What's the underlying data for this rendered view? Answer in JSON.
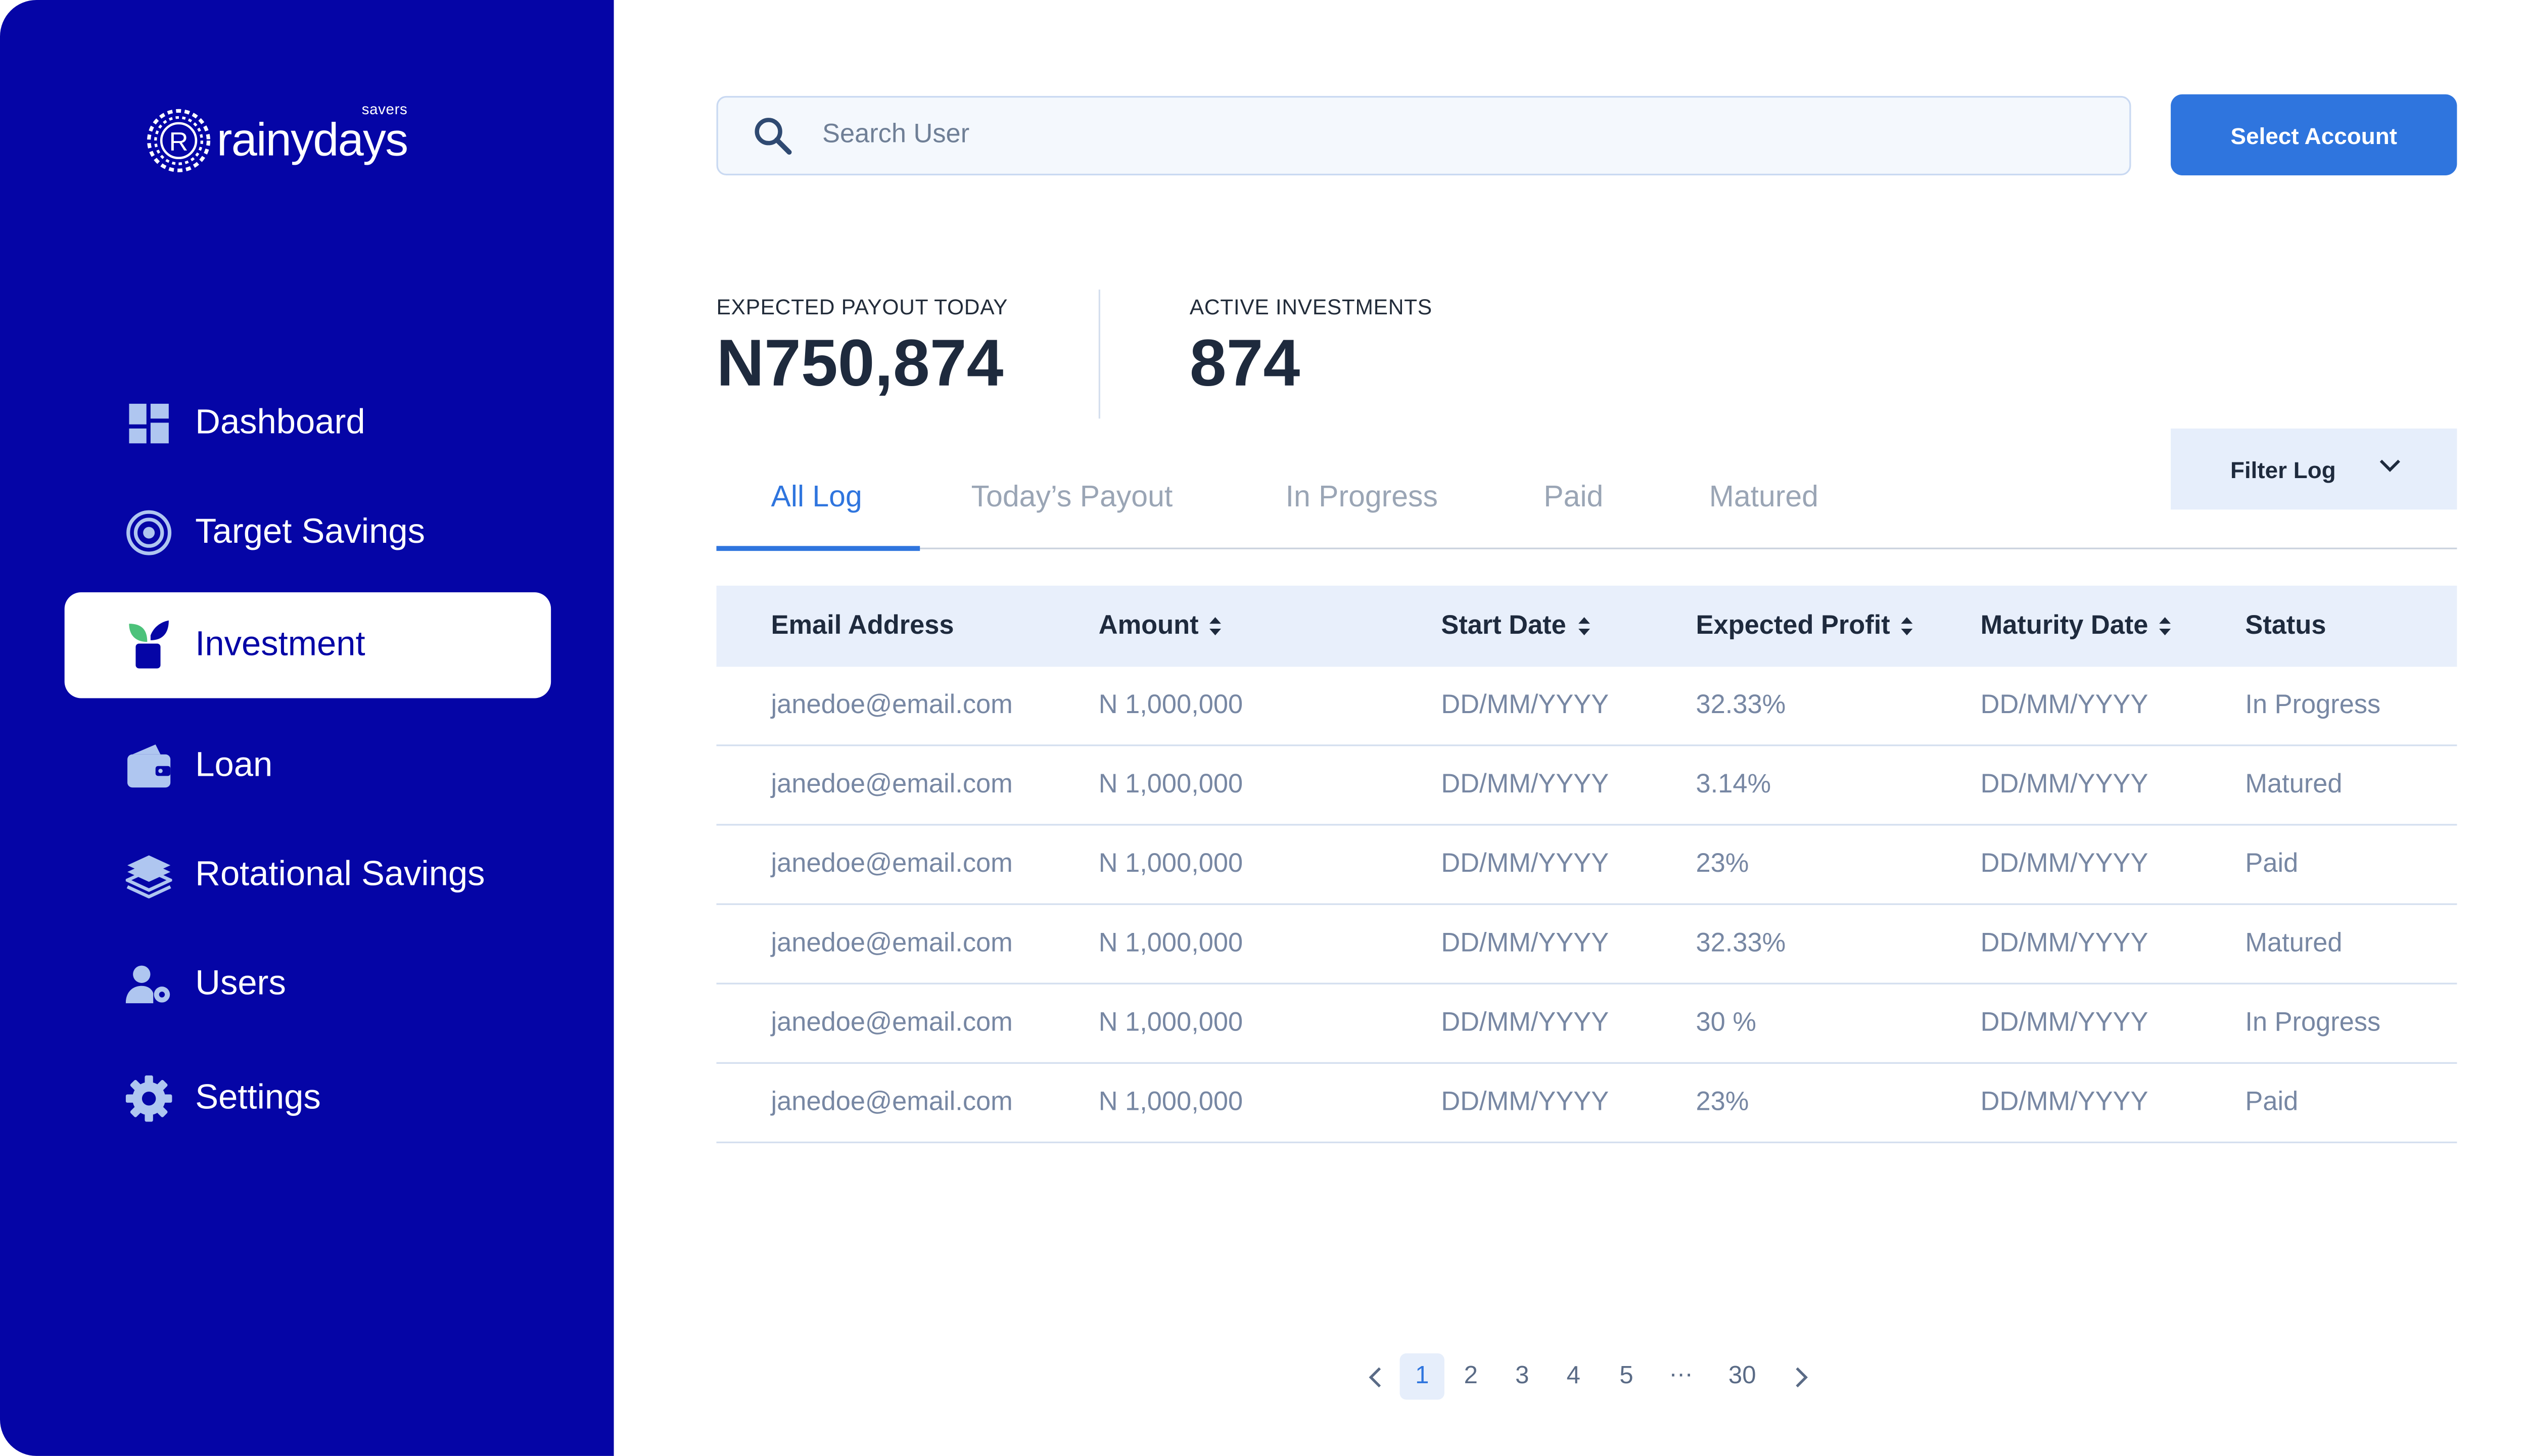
{
  "brand": {
    "name": "rainydays",
    "sup": "savers",
    "mark_letter": "R"
  },
  "colors": {
    "sidebar": "#0505A6",
    "accent": "#2F75DE",
    "header_bg": "#E8EFFB"
  },
  "sidebar": {
    "items": [
      {
        "label": "Dashboard",
        "icon": "grid-icon"
      },
      {
        "label": "Target Savings",
        "icon": "target-icon"
      },
      {
        "label": "Investment",
        "icon": "plant-icon",
        "active": true
      },
      {
        "label": "Loan",
        "icon": "wallet-icon"
      },
      {
        "label": "Rotational Savings",
        "icon": "stack-icon"
      },
      {
        "label": "Users",
        "icon": "users-gear-icon"
      },
      {
        "label": "Settings",
        "icon": "gear-icon"
      }
    ]
  },
  "search": {
    "placeholder": "Search User"
  },
  "select_account": "Select Account",
  "stats": {
    "payout_label": "EXPECTED PAYOUT TODAY",
    "payout_value": "N750,874",
    "active_label": "ACTIVE INVESTMENTS",
    "active_value": "874"
  },
  "tabs": [
    "All Log",
    "Today’s Payout",
    "In Progress",
    "Paid",
    "Matured"
  ],
  "filter": {
    "label": "Filter Log"
  },
  "table": {
    "columns": [
      "Email Address",
      "Amount",
      "Start Date",
      "Expected Profit",
      "Maturity Date",
      "Status"
    ],
    "rows": [
      [
        "janedoe@email.com",
        "N 1,000,000",
        "DD/MM/YYYY",
        "32.33%",
        "DD/MM/YYYY",
        "In Progress"
      ],
      [
        "janedoe@email.com",
        "N 1,000,000",
        "DD/MM/YYYY",
        "3.14%",
        "DD/MM/YYYY",
        "Matured"
      ],
      [
        "janedoe@email.com",
        "N 1,000,000",
        "DD/MM/YYYY",
        "23%",
        "DD/MM/YYYY",
        "Paid"
      ],
      [
        "janedoe@email.com",
        "N 1,000,000",
        "DD/MM/YYYY",
        "32.33%",
        "DD/MM/YYYY",
        "Matured"
      ],
      [
        "janedoe@email.com",
        "N 1,000,000",
        "DD/MM/YYYY",
        "30 %",
        "DD/MM/YYYY",
        "In Progress"
      ],
      [
        "janedoe@email.com",
        "N 1,000,000",
        "DD/MM/YYYY",
        "23%",
        "DD/MM/YYYY",
        "Paid"
      ]
    ]
  },
  "pagination": {
    "pages": [
      "1",
      "2",
      "3",
      "4",
      "5",
      "…",
      "30"
    ],
    "current": "1"
  }
}
